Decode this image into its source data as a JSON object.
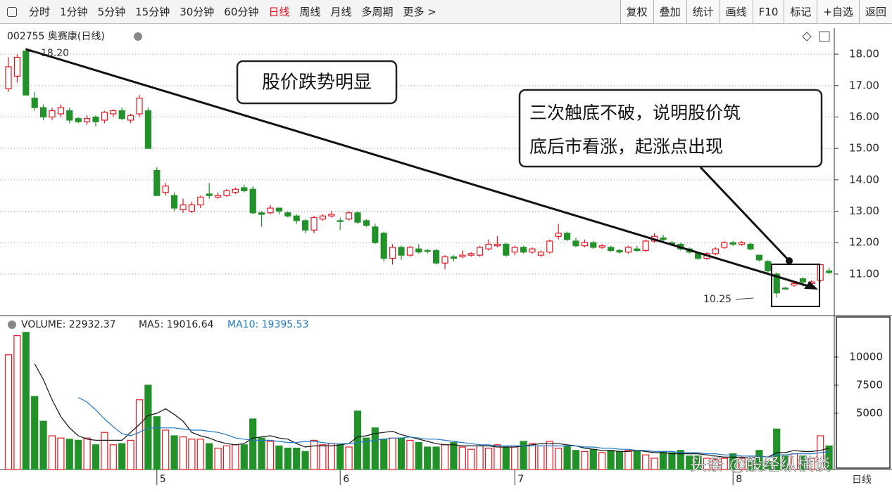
{
  "toolbar": {
    "left": [
      "分时",
      "1分钟",
      "5分钟",
      "15分钟",
      "30分钟",
      "60分钟",
      "日线",
      "周线",
      "月线",
      "多周期",
      "更多 >"
    ],
    "active": "日线",
    "right": [
      "复权",
      "叠加",
      "统计",
      "画线",
      "F10",
      "标记",
      "+自选",
      "返回"
    ]
  },
  "chart_data": [
    {
      "type": "candlestick",
      "title": "002755 奥赛康(日线)",
      "categories": [
        null,
        null,
        null,
        null,
        null,
        null,
        null,
        null,
        null,
        null,
        null,
        null,
        null,
        null,
        null,
        null,
        null,
        "5",
        null,
        null,
        null,
        null,
        null,
        null,
        null,
        null,
        null,
        null,
        null,
        null,
        null,
        null,
        null,
        null,
        null,
        null,
        null,
        null,
        "6",
        null,
        null,
        null,
        null,
        null,
        null,
        null,
        null,
        null,
        null,
        null,
        null,
        null,
        null,
        null,
        null,
        null,
        null,
        null,
        "7",
        null,
        null,
        null,
        null,
        null,
        null,
        null,
        null,
        null,
        null,
        null,
        null,
        null,
        null,
        null,
        null,
        null,
        null,
        null,
        null,
        null,
        null,
        null,
        null,
        "8",
        null,
        null,
        null,
        null,
        null,
        null,
        null,
        null,
        null,
        null,
        null
      ],
      "open": [
        16.9,
        17.3,
        18.1,
        16.6,
        16.3,
        16.0,
        16.1,
        16.2,
        15.95,
        15.85,
        16.0,
        15.9,
        16.1,
        16.2,
        15.9,
        16.1,
        16.2,
        14.3,
        13.6,
        13.5,
        13.05,
        13.0,
        13.2,
        13.55,
        13.45,
        13.5,
        13.6,
        13.75,
        13.7,
        12.95,
        12.95,
        13.1,
        12.95,
        12.85,
        12.7,
        12.4,
        12.75,
        12.85,
        12.7,
        12.75,
        12.95,
        12.7,
        12.5,
        12.3,
        11.5,
        11.85,
        11.6,
        11.8,
        11.75,
        11.75,
        11.35,
        11.55,
        11.55,
        11.6,
        11.6,
        11.8,
        11.9,
        11.95,
        11.7,
        11.85,
        11.7,
        11.6,
        11.7,
        12.2,
        12.3,
        12.05,
        11.9,
        12.0,
        11.85,
        11.85,
        11.75,
        11.7,
        11.8,
        11.75,
        12.05,
        12.15,
        12.0,
        11.95,
        11.8,
        11.65,
        11.5,
        11.65,
        11.85,
        12.0,
        11.95,
        11.95,
        11.6,
        11.4,
        11.0,
        10.55,
        10.65,
        10.85,
        10.7,
        10.8,
        11.1
      ],
      "high": [
        17.9,
        18.0,
        18.2,
        16.8,
        16.4,
        16.3,
        16.4,
        16.3,
        16.0,
        16.05,
        16.05,
        16.2,
        16.25,
        16.3,
        16.1,
        16.7,
        16.3,
        14.4,
        13.9,
        13.6,
        13.4,
        13.3,
        13.5,
        13.9,
        13.6,
        13.7,
        13.75,
        13.85,
        13.8,
        13.0,
        13.2,
        13.1,
        13.0,
        12.9,
        12.75,
        12.85,
        12.9,
        13.0,
        12.8,
        13.0,
        13.0,
        12.75,
        12.6,
        12.35,
        11.95,
        11.9,
        11.9,
        11.95,
        11.8,
        11.8,
        11.6,
        11.6,
        11.75,
        11.7,
        11.9,
        12.1,
        12.2,
        12.0,
        11.9,
        11.9,
        11.85,
        11.75,
        12.1,
        12.6,
        12.35,
        12.15,
        12.1,
        12.05,
        11.95,
        11.9,
        11.8,
        11.9,
        11.9,
        12.1,
        12.3,
        12.25,
        12.05,
        12.0,
        11.85,
        11.7,
        11.7,
        11.85,
        12.05,
        12.05,
        12.05,
        12.0,
        11.6,
        11.45,
        11.05,
        10.6,
        10.75,
        10.9,
        10.8,
        11.3,
        11.2
      ],
      "low": [
        16.8,
        17.1,
        16.7,
        16.2,
        15.9,
        15.9,
        16.0,
        15.8,
        15.8,
        15.75,
        15.7,
        15.8,
        16.0,
        15.9,
        15.8,
        16.0,
        15.0,
        13.5,
        13.5,
        13.0,
        12.95,
        12.95,
        13.1,
        13.4,
        13.4,
        13.45,
        13.55,
        13.6,
        12.9,
        12.5,
        12.9,
        12.9,
        12.8,
        12.6,
        12.3,
        12.3,
        12.7,
        12.8,
        12.4,
        12.7,
        12.6,
        12.5,
        11.95,
        11.4,
        11.3,
        11.45,
        11.55,
        11.65,
        11.65,
        11.3,
        11.15,
        11.4,
        11.5,
        11.55,
        11.55,
        11.75,
        11.85,
        11.55,
        11.6,
        11.65,
        11.65,
        11.55,
        11.65,
        12.1,
        12.05,
        11.85,
        11.85,
        11.8,
        11.8,
        11.7,
        11.65,
        11.65,
        11.7,
        11.7,
        12.0,
        12.05,
        11.9,
        11.75,
        11.65,
        11.45,
        11.45,
        11.6,
        11.8,
        11.9,
        11.9,
        11.75,
        11.4,
        11.0,
        10.25,
        10.5,
        10.6,
        10.6,
        10.65,
        10.75,
        11.0
      ],
      "close": [
        17.6,
        17.9,
        16.7,
        16.3,
        16.0,
        16.2,
        16.3,
        15.9,
        15.85,
        15.95,
        15.85,
        16.15,
        16.2,
        15.95,
        16.05,
        16.6,
        15.0,
        13.5,
        13.8,
        13.1,
        13.2,
        13.2,
        13.45,
        13.5,
        13.5,
        13.65,
        13.7,
        13.65,
        12.95,
        12.9,
        13.1,
        13.0,
        12.85,
        12.7,
        12.4,
        12.8,
        12.85,
        12.9,
        12.7,
        12.95,
        12.65,
        12.55,
        12.0,
        11.5,
        11.85,
        11.6,
        11.85,
        11.7,
        11.75,
        11.35,
        11.55,
        11.5,
        11.6,
        11.65,
        11.85,
        11.95,
        11.95,
        11.6,
        11.85,
        11.7,
        11.8,
        11.7,
        12.05,
        12.3,
        12.1,
        11.9,
        12.0,
        11.85,
        11.9,
        11.75,
        11.7,
        11.85,
        11.75,
        12.05,
        12.2,
        12.1,
        11.95,
        11.8,
        11.7,
        11.5,
        11.65,
        11.8,
        12.0,
        11.95,
        12.0,
        11.8,
        11.45,
        11.1,
        10.4,
        10.55,
        10.7,
        10.75,
        10.75,
        11.3,
        11.05
      ],
      "up_color": "#e8141e",
      "down_color": "#23912a",
      "ylim": [
        9.7,
        18.83
      ],
      "yticks": [
        {
          "value": 11,
          "label": "11.00"
        },
        {
          "value": 12,
          "label": "12.00"
        },
        {
          "value": 13,
          "label": "13.00"
        },
        {
          "value": 14,
          "label": "14.00"
        },
        {
          "value": 15,
          "label": "15.00"
        },
        {
          "value": 16,
          "label": "16.00"
        },
        {
          "value": 17,
          "label": "17.00"
        },
        {
          "value": 18,
          "label": "18.00"
        }
      ],
      "grid": true,
      "high_label": "18.20",
      "low_label": "10.25",
      "annotations": {
        "trend": "股价跌势明显",
        "bottom": [
          "三次触底不破，说明股价筑",
          "底后市看涨，起涨点出现"
        ]
      }
    },
    {
      "type": "bar",
      "title": "VOLUME: 22932.37",
      "ma_labels": [
        "MA5: 19016.64",
        "MA10: 19395.53"
      ],
      "values": [
        10200,
        11900,
        12200,
        6500,
        4300,
        3000,
        2800,
        2700,
        2600,
        2800,
        2200,
        3300,
        2200,
        2300,
        2600,
        6200,
        7500,
        4700,
        3500,
        3000,
        2900,
        2700,
        2700,
        2300,
        1900,
        2100,
        2200,
        2200,
        4500,
        2800,
        2500,
        2100,
        1900,
        1900,
        1600,
        2600,
        2200,
        2300,
        2200,
        2000,
        5200,
        2800,
        3700,
        2700,
        2800,
        2800,
        2600,
        2400,
        2000,
        2000,
        2200,
        2400,
        2000,
        1800,
        2100,
        1900,
        2200,
        2000,
        2000,
        2500,
        2300,
        2100,
        2500,
        1900,
        2100,
        1700,
        1600,
        1800,
        1500,
        1700,
        1600,
        1700,
        1700,
        1300,
        1000,
        1600,
        1500,
        1700,
        1200,
        1200,
        1000,
        900,
        1000,
        1400,
        1000,
        800,
        1700,
        700,
        3600,
        1200,
        1400,
        1200,
        1000,
        3000,
        2100
      ],
      "series": [
        {
          "name": "MA5",
          "color": "#111111",
          "values": [
            null,
            null,
            null,
            9400,
            8000,
            6200,
            4700,
            3700,
            3000,
            2700,
            2600,
            2600,
            2600,
            2600,
            3300,
            4000,
            4800,
            5000,
            5400,
            4900,
            4300,
            3300,
            3000,
            2800,
            2500,
            2300,
            2200,
            2300,
            2800,
            2900,
            3000,
            2800,
            2700,
            2300,
            2000,
            2100,
            2100,
            2100,
            2200,
            2300,
            2900,
            3000,
            3200,
            3300,
            3400,
            3100,
            2900,
            2700,
            2500,
            2300,
            2200,
            2200,
            2100,
            2100,
            2100,
            2100,
            2000,
            2000,
            2000,
            2100,
            2200,
            2300,
            2300,
            2300,
            2200,
            2100,
            1900,
            1800,
            1700,
            1700,
            1600,
            1600,
            1700,
            1600,
            1500,
            1500,
            1400,
            1400,
            1400,
            1400,
            1300,
            1200,
            1100,
            1100,
            1100,
            1000,
            1200,
            1100,
            1500,
            1500,
            1700,
            1600,
            1600,
            1700,
            1900
          ]
        },
        {
          "name": "MA10",
          "color": "#1f78c8",
          "values": [
            null,
            null,
            null,
            null,
            null,
            null,
            null,
            null,
            6400,
            6000,
            5300,
            4500,
            3800,
            3200,
            3000,
            3300,
            3700,
            3700,
            3700,
            3700,
            3600,
            3500,
            3500,
            3400,
            3300,
            3100,
            2800,
            2700,
            2600,
            2600,
            2600,
            2500,
            2400,
            2400,
            2500,
            2500,
            2400,
            2300,
            2300,
            2300,
            2400,
            2500,
            2600,
            2700,
            2800,
            2800,
            2900,
            2800,
            2700,
            2700,
            2600,
            2500,
            2400,
            2300,
            2200,
            2200,
            2100,
            2100,
            2100,
            2100,
            2100,
            2100,
            2100,
            2100,
            2100,
            2100,
            2000,
            2000,
            1900,
            1900,
            1800,
            1800,
            1700,
            1700,
            1600,
            1600,
            1600,
            1500,
            1500,
            1500,
            1400,
            1400,
            1300,
            1300,
            1200,
            1200,
            1200,
            1100,
            1300,
            1300,
            1400,
            1400,
            1400,
            1500,
            1600
          ]
        }
      ],
      "ylim": [
        0,
        13500
      ],
      "yticks": [
        5000,
        7500,
        10000
      ],
      "period_label": "日线"
    }
  ],
  "watermark": "头条 @股经纵横谈"
}
